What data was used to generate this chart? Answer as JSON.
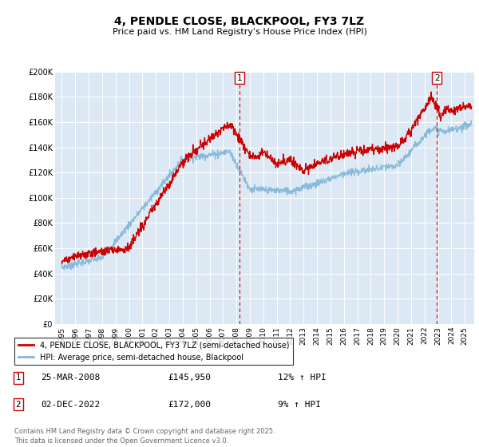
{
  "title": "4, PENDLE CLOSE, BLACKPOOL, FY3 7LZ",
  "subtitle": "Price paid vs. HM Land Registry's House Price Index (HPI)",
  "background_color": "#ffffff",
  "plot_bg_color": "#dce9f5",
  "ylim": [
    0,
    200000
  ],
  "yticks": [
    0,
    20000,
    40000,
    60000,
    80000,
    100000,
    120000,
    140000,
    160000,
    180000,
    200000
  ],
  "ytick_labels": [
    "£0",
    "£20K",
    "£40K",
    "£60K",
    "£80K",
    "£100K",
    "£120K",
    "£140K",
    "£160K",
    "£180K",
    "£200K"
  ],
  "xlim_start": 1994.5,
  "xlim_end": 2025.7,
  "sale1_x": 2008.23,
  "sale1_y": 145950,
  "sale2_x": 2022.92,
  "sale2_y": 172000,
  "red_line_color": "#cc0000",
  "blue_line_color": "#85b8d8",
  "dashed_line_color": "#cc0000",
  "legend_label_red": "4, PENDLE CLOSE, BLACKPOOL, FY3 7LZ (semi-detached house)",
  "legend_label_blue": "HPI: Average price, semi-detached house, Blackpool",
  "sale1_date": "25-MAR-2008",
  "sale1_price": "£145,950",
  "sale1_hpi": "12% ↑ HPI",
  "sale2_date": "02-DEC-2022",
  "sale2_price": "£172,000",
  "sale2_hpi": "9% ↑ HPI",
  "footer": "Contains HM Land Registry data © Crown copyright and database right 2025.\nThis data is licensed under the Open Government Licence v3.0.",
  "xticks": [
    1995,
    1996,
    1997,
    1998,
    1999,
    2000,
    2001,
    2002,
    2003,
    2004,
    2005,
    2006,
    2007,
    2008,
    2009,
    2010,
    2011,
    2012,
    2013,
    2014,
    2015,
    2016,
    2017,
    2018,
    2019,
    2020,
    2021,
    2022,
    2023,
    2024,
    2025
  ]
}
